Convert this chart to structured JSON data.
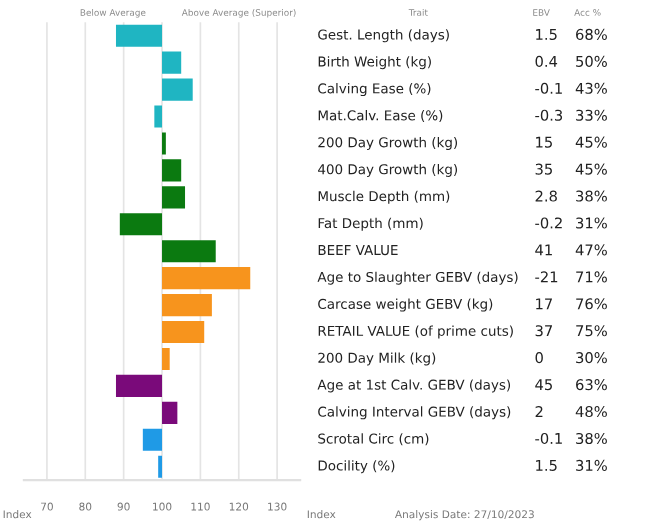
{
  "chart_data": {
    "type": "bar",
    "orientation": "horizontal",
    "categories": [
      "Gest. Length (days)",
      "Birth Weight (kg)",
      "Calving Ease (%)",
      "Mat.Calv. Ease (%)",
      "200 Day Growth (kg)",
      "400 Day Growth (kg)",
      "Muscle Depth (mm)",
      "Fat Depth (mm)",
      "BEEF VALUE",
      "Age to Slaughter GEBV (days)",
      "Carcase weight GEBV (kg)",
      "RETAIL VALUE (of prime cuts)",
      "200 Day Milk (kg)",
      "Age at 1st Calv. GEBV (days)",
      "Calving Interval GEBV (days)",
      "Scrotal Circ (cm)",
      "Docility (%)"
    ],
    "base": [
      100,
      100,
      100,
      100,
      100,
      100,
      100,
      100,
      100,
      100,
      100,
      100,
      100,
      100,
      100,
      100,
      100
    ],
    "values": [
      -12,
      5,
      8,
      -2,
      1,
      5,
      6,
      -11,
      14,
      23,
      13,
      11,
      2,
      -12,
      4,
      -5,
      -1
    ],
    "colors": [
      "#1fb5c2",
      "#1fb5c2",
      "#1fb5c2",
      "#1fb5c2",
      "#0b7a10",
      "#0b7a10",
      "#0b7a10",
      "#0b7a10",
      "#0b7a10",
      "#f7941d",
      "#f7941d",
      "#f7941d",
      "#f7941d",
      "#7a0a7a",
      "#7a0a7a",
      "#1f9ae6",
      "#1f9ae6"
    ],
    "xlim": [
      64,
      136
    ],
    "xticks": [
      70,
      80,
      90,
      100,
      110,
      120,
      130
    ],
    "grid": "x",
    "xlabel": "Index",
    "annotations": [
      "Below Average",
      "Above Average (Superior)",
      "Trait",
      "EBV",
      "Acc %",
      "1.5",
      "0.4",
      "-0.1",
      "-0.3",
      "15",
      "35",
      "2.8",
      "-0.2",
      "41",
      "-21",
      "17",
      "37",
      "0",
      "45",
      "2",
      "-0.1",
      "1.5",
      "68%",
      "50%",
      "43%",
      "33%",
      "45%",
      "45%",
      "38%",
      "31%",
      "47%",
      "71%",
      "76%",
      "75%",
      "30%",
      "63%",
      "48%",
      "38%",
      "31%",
      "Index",
      "Analysis Date: 27/10/2023"
    ]
  }
}
